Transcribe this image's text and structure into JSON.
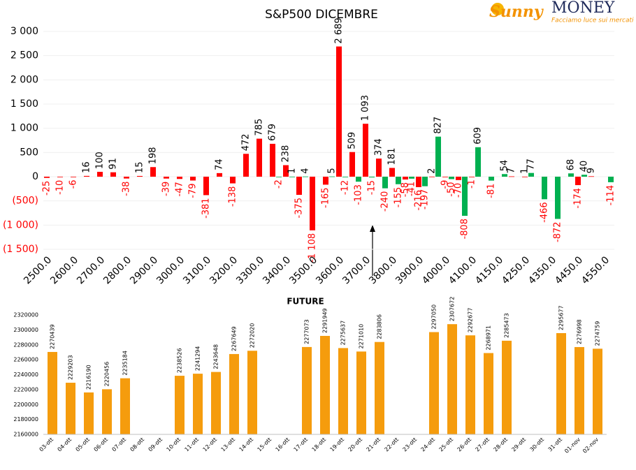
{
  "logo": {
    "brand": "Sunny",
    "name": "MONEY",
    "tagline": "Facciamo luce sui mercati"
  },
  "chart_data": [
    {
      "type": "bar",
      "title": "S&P500 DICEMBRE",
      "categories": [
        "2500.0",
        null,
        "2600.0",
        null,
        "2700.0",
        null,
        "2800.0",
        null,
        "2900.0",
        null,
        "3000.0",
        null,
        "3100.0",
        null,
        "3200.0",
        null,
        "3300.0",
        null,
        "3400.0",
        null,
        "3500.0",
        null,
        "3600.0",
        null,
        "3700.0",
        null,
        "3800.0",
        null,
        "3900.0",
        null,
        "4000.0",
        null,
        "4100.0",
        null,
        "4150.0",
        null,
        "4250.0",
        null,
        "4350.0",
        null,
        "4450.0",
        null,
        "4550.0"
      ],
      "series": [
        {
          "color": "#ff0000",
          "values": [
            -25,
            -10,
            -6,
            16,
            100,
            91,
            -38,
            15,
            198,
            -39,
            -47,
            -79,
            -381,
            74,
            -138,
            472,
            785,
            679,
            238,
            -375,
            -1108,
            -165,
            2689,
            509,
            1093,
            374,
            181,
            -58,
            -216,
            2,
            -9,
            -70,
            -1,
            null,
            null,
            7,
            1,
            null,
            null,
            null,
            -174,
            9,
            null
          ],
          "value_labels": [
            "-25",
            "-10",
            "-6",
            "16",
            "100",
            "91",
            "-38",
            "15",
            "198",
            "-39",
            "-47",
            "-79",
            "-381",
            "74",
            "-138",
            "472",
            "785",
            "679",
            "238",
            "-375",
            "-1 108",
            "-165",
            "2 689",
            "509",
            "1 093",
            "374",
            "181",
            "-58",
            "-216",
            "2",
            "-9",
            "-70",
            "-1",
            null,
            null,
            "7",
            "1",
            null,
            null,
            null,
            "-174",
            "9",
            null
          ]
        },
        {
          "color": "#00b050",
          "values": [
            null,
            null,
            null,
            null,
            null,
            null,
            null,
            null,
            null,
            null,
            null,
            null,
            null,
            null,
            null,
            null,
            null,
            -2,
            1,
            4,
            null,
            5,
            -12,
            -103,
            -15,
            -240,
            -155,
            -41,
            -197,
            827,
            -50,
            -808,
            609,
            -81,
            54,
            null,
            77,
            -466,
            -872,
            68,
            40,
            null,
            -114
          ],
          "value_labels": [
            null,
            null,
            null,
            null,
            null,
            null,
            null,
            null,
            null,
            null,
            null,
            null,
            null,
            null,
            null,
            null,
            null,
            "-2",
            "1",
            "4",
            null,
            "5",
            "-12",
            "-103",
            "-15",
            "-240",
            "-155",
            "-41",
            "-197",
            "827",
            "-50",
            "-808",
            "609",
            "-81",
            "54",
            null,
            "77",
            "-466",
            "-872",
            "68",
            "40",
            null,
            "-114"
          ]
        }
      ],
      "ylim": [
        -1500,
        3000
      ],
      "yticks": [
        {
          "value": -1500,
          "label": "(1 500)"
        },
        {
          "value": -1000,
          "label": "(1 000)"
        },
        {
          "value": -500,
          "label": "(500)"
        },
        0,
        500,
        {
          "value": 1000,
          "label": "1 000"
        },
        {
          "value": 1500,
          "label": "1 500"
        },
        {
          "value": 2000,
          "label": "2 000"
        },
        {
          "value": 2500,
          "label": "2 500"
        },
        {
          "value": 3000,
          "label": "3 000"
        }
      ],
      "grid": true
    },
    {
      "type": "bar",
      "title": "FUTURE",
      "categories": [
        "03-ott",
        "04-ott",
        "05-ott",
        "06-ott",
        "07-ott",
        "08-ott",
        "09-ott",
        "10-ott",
        "11-ott",
        "12-ott",
        "13-ott",
        "14-ott",
        "15-ott",
        "16-ott",
        "17-ott",
        "18-ott",
        "19-ott",
        "20-ott",
        "21-ott",
        "22-ott",
        "23-ott",
        "24-ott",
        "25-ott",
        "26-ott",
        "27-ott",
        "28-ott",
        "29-ott",
        "30-ott",
        "31-ott",
        "01-nov",
        "02-nov"
      ],
      "values": [
        2270439,
        2229203,
        2216190,
        2220456,
        2235184,
        null,
        null,
        2238526,
        2241294,
        2243648,
        2267649,
        2272020,
        null,
        null,
        2277073,
        2291949,
        2275637,
        2271010,
        2283806,
        null,
        null,
        2297050,
        2307672,
        2292677,
        2268971,
        2285473,
        null,
        null,
        2295677,
        2276998,
        2274759
      ],
      "color": "#f59c0d",
      "ylim": [
        2160000,
        2320000
      ],
      "yticks": [
        2160000,
        2180000,
        2200000,
        2220000,
        2240000,
        2260000,
        2280000,
        2300000,
        2320000
      ],
      "grid": false
    }
  ]
}
